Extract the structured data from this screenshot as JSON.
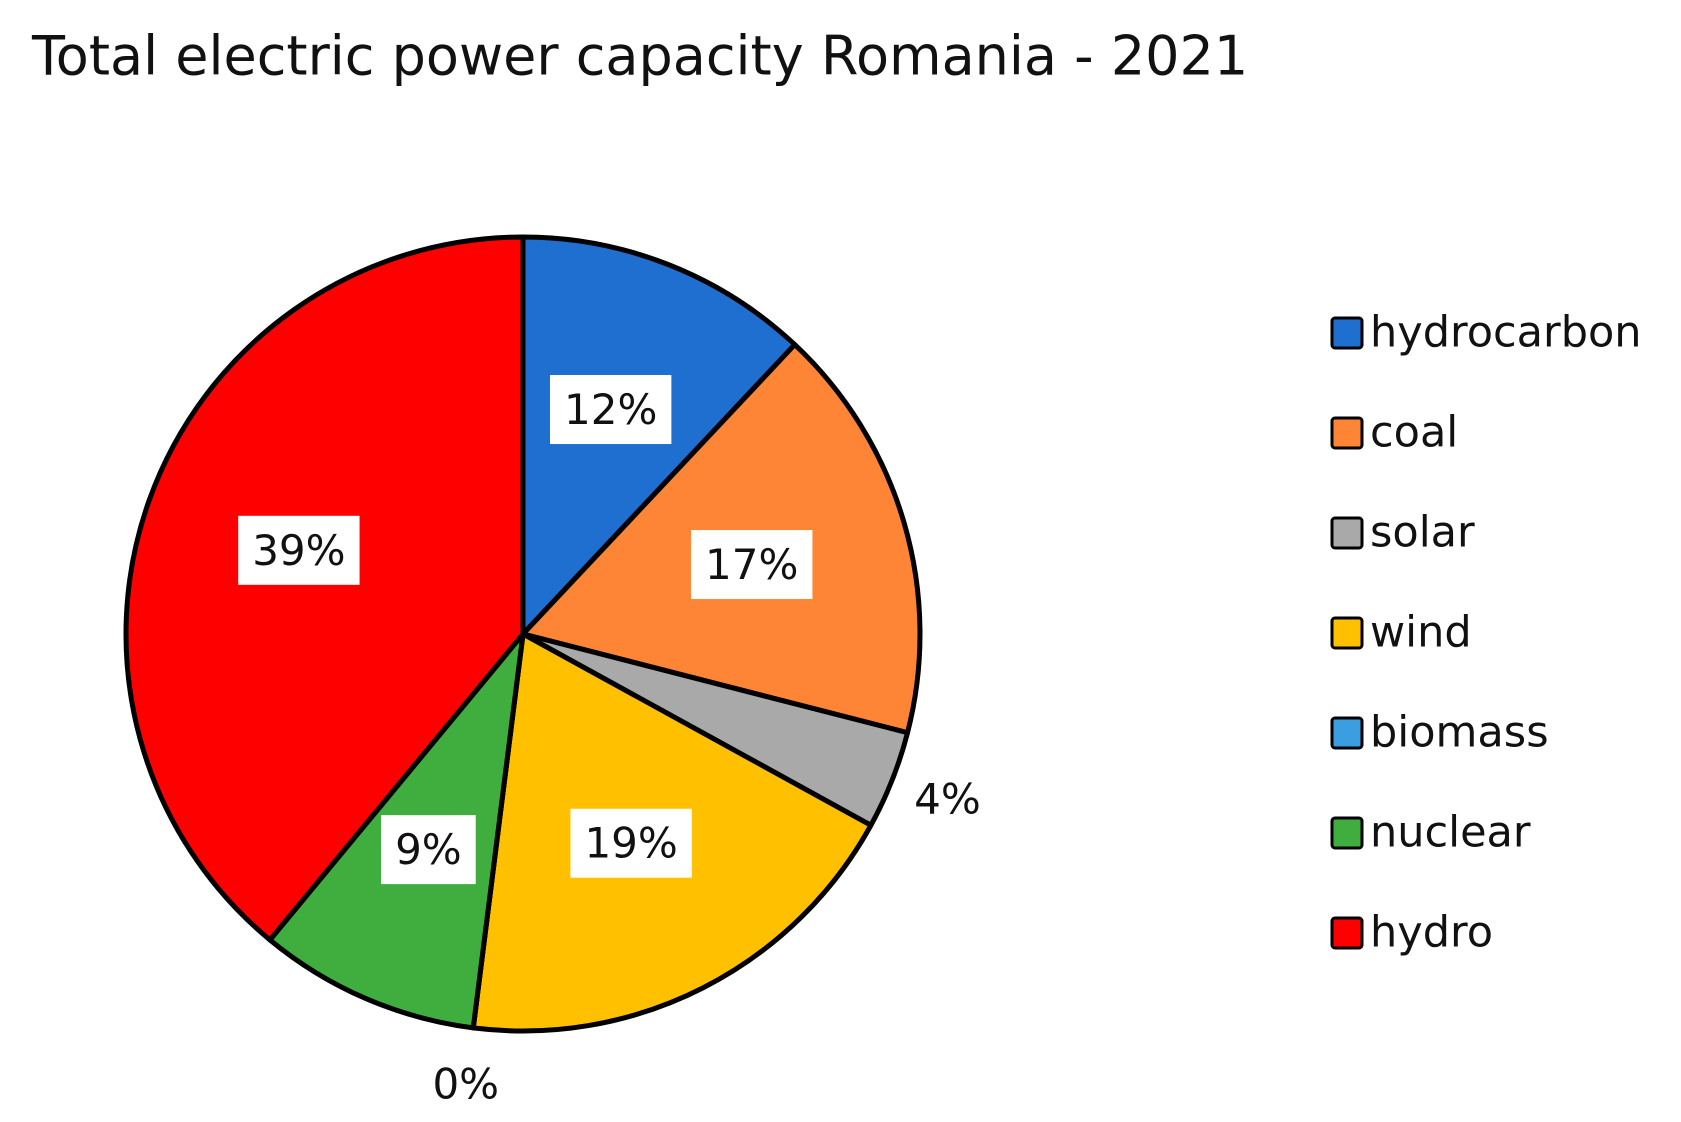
{
  "chart_data": {
    "type": "pie",
    "title": "Total electric power capacity Romania - 2021",
    "categories": [
      "hydrocarbon",
      "coal",
      "solar",
      "wind",
      "biomass",
      "nuclear",
      "hydro"
    ],
    "values": [
      12,
      17,
      4,
      19,
      0,
      9,
      39
    ],
    "value_labels": [
      "12%",
      "17%",
      "4%",
      "19%",
      "0%",
      "9%",
      "39%"
    ],
    "colors": [
      "#1f6fd1",
      "#fd8535",
      "#a9a9a9",
      "#ffc000",
      "#3a9ee0",
      "#3fae3f",
      "#ff0000"
    ],
    "legend": "right"
  }
}
